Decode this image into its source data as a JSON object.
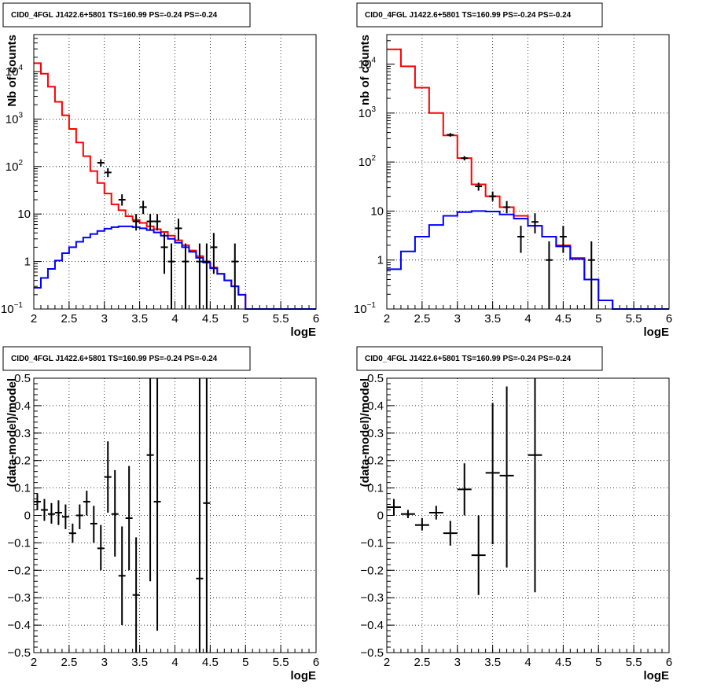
{
  "chart_data": [
    {
      "type": "histogram",
      "title": "CID0_4FGL J1422.6+5801 TS=160.99 PS=-0.24 PS=-0.24",
      "xlabel": "logE",
      "ylabel": "Nb of counts",
      "xlim": [
        2,
        6
      ],
      "ylim": [
        0.1,
        60000
      ],
      "yscale": "log",
      "grid": true,
      "x_ticks": [
        "2",
        "2.5",
        "3",
        "3.5",
        "4",
        "4.5",
        "5",
        "5.5",
        "6"
      ],
      "y_ticks": [
        {
          "v": 0.1,
          "m": "10",
          "e": "−1"
        },
        {
          "v": 1,
          "m": "1",
          "e": ""
        },
        {
          "v": 10,
          "m": "10",
          "e": ""
        },
        {
          "v": 100,
          "m": "10",
          "e": "2"
        },
        {
          "v": 1000,
          "m": "10",
          "e": "3"
        },
        {
          "v": 10000,
          "m": "10",
          "e": "4"
        }
      ],
      "bin_edges": [
        2.0,
        2.1,
        2.2,
        2.3,
        2.4,
        2.5,
        2.6,
        2.7,
        2.8,
        2.9,
        3.0,
        3.1,
        3.2,
        3.3,
        3.4,
        3.5,
        3.6,
        3.7,
        3.8,
        3.9,
        4.0,
        4.1,
        4.2,
        4.3,
        4.4,
        4.5,
        4.6,
        4.7,
        4.8,
        4.9,
        5.0,
        5.1,
        5.2,
        5.3,
        5.4,
        5.5,
        5.6,
        5.7,
        5.8,
        5.9,
        6.0
      ],
      "series": [
        {
          "name": "total model",
          "color": "#ff0000",
          "values": [
            15000,
            9000,
            4800,
            2300,
            1200,
            620,
            320,
            165,
            80,
            45,
            27,
            16,
            12,
            9,
            7.5,
            6.5,
            5.5,
            4.8,
            4.2,
            3.5,
            2.8,
            2.2,
            1.7,
            1.3,
            1.0,
            0.75,
            0.55,
            0.4,
            0.3,
            0.2,
            0.1,
            0.1,
            0.1,
            0.1,
            0.1,
            0.1,
            0.1,
            0.1,
            0.1,
            0.1
          ]
        },
        {
          "name": "source",
          "color": "#0000ff",
          "values": [
            0.28,
            0.45,
            0.7,
            1.05,
            1.5,
            2.0,
            2.6,
            3.2,
            3.8,
            4.4,
            4.9,
            5.3,
            5.5,
            5.5,
            5.3,
            5.0,
            4.6,
            4.1,
            3.5,
            3.0,
            2.5,
            2.0,
            1.6,
            1.2,
            0.95,
            0.72,
            0.55,
            0.4,
            0.3,
            0.2,
            0.1,
            0.1,
            0.1,
            0.1,
            0.1,
            0.1,
            0.1,
            0.1,
            0.1,
            0.1
          ]
        }
      ],
      "points": [
        {
          "x": 2.95,
          "y": 120,
          "ylo": 100,
          "yhi": 142
        },
        {
          "x": 3.05,
          "y": 75,
          "ylo": 60,
          "yhi": 92
        },
        {
          "x": 3.25,
          "y": 20,
          "ylo": 15,
          "yhi": 26
        },
        {
          "x": 3.45,
          "y": 7,
          "ylo": 4.5,
          "yhi": 10
        },
        {
          "x": 3.55,
          "y": 14,
          "ylo": 10,
          "yhi": 19
        },
        {
          "x": 3.65,
          "y": 7,
          "ylo": 4.5,
          "yhi": 10
        },
        {
          "x": 3.75,
          "y": 7,
          "ylo": 4.5,
          "yhi": 10
        },
        {
          "x": 3.85,
          "y": 2,
          "ylo": 0.55,
          "yhi": 4
        },
        {
          "x": 3.95,
          "y": 1,
          "ylo": 0.1,
          "yhi": 2.4
        },
        {
          "x": 4.05,
          "y": 5,
          "ylo": 2.8,
          "yhi": 8
        },
        {
          "x": 4.15,
          "y": 1,
          "ylo": 0.1,
          "yhi": 2.4
        },
        {
          "x": 4.35,
          "y": 1,
          "ylo": 0.1,
          "yhi": 2.4
        },
        {
          "x": 4.45,
          "y": 1,
          "ylo": 0.1,
          "yhi": 2.4
        },
        {
          "x": 4.55,
          "y": 2,
          "ylo": 0.55,
          "yhi": 4
        },
        {
          "x": 4.85,
          "y": 1,
          "ylo": 0.1,
          "yhi": 2.4
        }
      ]
    },
    {
      "type": "histogram",
      "title": "CID0_4FGL J1422.6+5801 TS=160.99 PS=-0.24 PS=-0.24",
      "xlabel": "logE",
      "ylabel": "nb of counts",
      "xlim": [
        2,
        6
      ],
      "ylim": [
        0.1,
        40000
      ],
      "yscale": "log",
      "grid": true,
      "x_ticks": [
        "2",
        "2.5",
        "3",
        "3.5",
        "4",
        "4.5",
        "5",
        "5.5",
        "6"
      ],
      "y_ticks": [
        {
          "v": 0.1,
          "m": "10",
          "e": "−1"
        },
        {
          "v": 1,
          "m": "1",
          "e": ""
        },
        {
          "v": 10,
          "m": "10",
          "e": ""
        },
        {
          "v": 100,
          "m": "10",
          "e": "2"
        },
        {
          "v": 1000,
          "m": "10",
          "e": "3"
        },
        {
          "v": 10000,
          "m": "10",
          "e": "4"
        }
      ],
      "bin_edges": [
        2.0,
        2.2,
        2.4,
        2.6,
        2.8,
        3.0,
        3.2,
        3.4,
        3.6,
        3.8,
        4.0,
        4.2,
        4.4,
        4.6,
        4.8,
        5.0,
        5.2,
        5.4,
        5.6,
        5.8,
        6.0
      ],
      "series": [
        {
          "name": "total model",
          "color": "#ff0000",
          "values": [
            20000,
            9000,
            3300,
            1000,
            350,
            120,
            35,
            20,
            12,
            8,
            5,
            3,
            2,
            1.1,
            0.4,
            0.15,
            0.1,
            0.1,
            0.1,
            0.1
          ]
        },
        {
          "name": "source",
          "color": "#0000ff",
          "values": [
            0.65,
            1.5,
            3,
            5.2,
            8,
            9.5,
            10,
            9.8,
            8.5,
            7,
            5,
            3,
            1.9,
            1.05,
            0.4,
            0.15,
            0.1,
            0.1,
            0.1,
            0.1
          ]
        }
      ],
      "points": [
        {
          "x": 2.9,
          "y": 360,
          "ylo": 330,
          "yhi": 390
        },
        {
          "x": 3.1,
          "y": 120,
          "ylo": 108,
          "yhi": 132
        },
        {
          "x": 3.3,
          "y": 32,
          "ylo": 26,
          "yhi": 38
        },
        {
          "x": 3.5,
          "y": 20,
          "ylo": 16,
          "yhi": 25
        },
        {
          "x": 3.7,
          "y": 12,
          "ylo": 9,
          "yhi": 16
        },
        {
          "x": 3.9,
          "y": 3,
          "ylo": 1.4,
          "yhi": 5
        },
        {
          "x": 4.1,
          "y": 6,
          "ylo": 3.5,
          "yhi": 9
        },
        {
          "x": 4.3,
          "y": 1,
          "ylo": 0.1,
          "yhi": 2.4
        },
        {
          "x": 4.5,
          "y": 3,
          "ylo": 1.4,
          "yhi": 5
        },
        {
          "x": 4.9,
          "y": 1,
          "ylo": 0.1,
          "yhi": 2.4
        }
      ]
    },
    {
      "type": "scatter",
      "title": "CID0_4FGL J1422.6+5801 TS=160.99 PS=-0.24 PS=-0.24",
      "xlabel": "logE",
      "ylabel": "(data-model)/model",
      "xlim": [
        2,
        6
      ],
      "ylim": [
        -0.5,
        0.5
      ],
      "yscale": "linear",
      "grid": true,
      "x_ticks": [
        "2",
        "2.5",
        "3",
        "3.5",
        "4",
        "4.5",
        "5",
        "5.5",
        "6"
      ],
      "y_ticks": [
        {
          "v": -0.5,
          "m": "−0.5",
          "e": ""
        },
        {
          "v": -0.4,
          "m": "−0.4",
          "e": ""
        },
        {
          "v": -0.3,
          "m": "−0.3",
          "e": ""
        },
        {
          "v": -0.2,
          "m": "−0.2",
          "e": ""
        },
        {
          "v": -0.1,
          "m": "−0.1",
          "e": ""
        },
        {
          "v": 0,
          "m": "0",
          "e": ""
        },
        {
          "v": 0.1,
          "m": "0.1",
          "e": ""
        },
        {
          "v": 0.2,
          "m": "0.2",
          "e": ""
        },
        {
          "v": 0.3,
          "m": "0.3",
          "e": ""
        },
        {
          "v": 0.4,
          "m": "0.4",
          "e": ""
        },
        {
          "v": 0.5,
          "m": "0.5",
          "e": ""
        }
      ],
      "points": [
        {
          "x": 2.05,
          "y": 0.05,
          "ylo": 0.02,
          "yhi": 0.08,
          "xerr": 0.05
        },
        {
          "x": 2.15,
          "y": 0.02,
          "ylo": -0.02,
          "yhi": 0.06,
          "xerr": 0.05
        },
        {
          "x": 2.25,
          "y": 0.005,
          "ylo": -0.03,
          "yhi": 0.045,
          "xerr": 0.05
        },
        {
          "x": 2.35,
          "y": 0.01,
          "ylo": -0.035,
          "yhi": 0.055,
          "xerr": 0.05
        },
        {
          "x": 2.45,
          "y": -0.005,
          "ylo": -0.05,
          "yhi": 0.04,
          "xerr": 0.05
        },
        {
          "x": 2.55,
          "y": -0.065,
          "ylo": -0.1,
          "yhi": -0.03,
          "xerr": 0.05
        },
        {
          "x": 2.65,
          "y": 0.0,
          "ylo": -0.05,
          "yhi": 0.04,
          "xerr": 0.05
        },
        {
          "x": 2.75,
          "y": 0.05,
          "ylo": 0.0,
          "yhi": 0.09,
          "xerr": 0.05
        },
        {
          "x": 2.85,
          "y": -0.03,
          "ylo": -0.1,
          "yhi": 0.035,
          "xerr": 0.05
        },
        {
          "x": 2.95,
          "y": -0.12,
          "ylo": -0.2,
          "yhi": -0.035,
          "xerr": 0.05
        },
        {
          "x": 3.05,
          "y": 0.14,
          "ylo": 0.01,
          "yhi": 0.27,
          "xerr": 0.05
        },
        {
          "x": 3.15,
          "y": 0.005,
          "ylo": -0.15,
          "yhi": 0.165,
          "xerr": 0.05
        },
        {
          "x": 3.25,
          "y": -0.22,
          "ylo": -0.4,
          "yhi": -0.04,
          "xerr": 0.05
        },
        {
          "x": 3.35,
          "y": -0.01,
          "ylo": -0.2,
          "yhi": 0.18,
          "xerr": 0.05
        },
        {
          "x": 3.45,
          "y": -0.29,
          "ylo": -0.5,
          "yhi": -0.08,
          "xerr": 0.05
        },
        {
          "x": 3.65,
          "y": 0.22,
          "ylo": -0.24,
          "yhi": 0.5,
          "xerr": 0.05
        },
        {
          "x": 3.75,
          "y": 0.05,
          "ylo": -0.42,
          "yhi": 0.5,
          "xerr": 0.05
        },
        {
          "x": 4.35,
          "y": -0.23,
          "ylo": -0.5,
          "yhi": 0.5,
          "xerr": 0.05
        },
        {
          "x": 4.45,
          "y": 0.045,
          "ylo": -0.5,
          "yhi": 0.5,
          "xerr": 0.05
        }
      ]
    },
    {
      "type": "scatter",
      "title": "CID0_4FGL J1422.6+5801 TS=160.99 PS=-0.24 PS=-0.24",
      "xlabel": "logE",
      "ylabel": "(data-model)/model",
      "xlim": [
        2,
        6
      ],
      "ylim": [
        -0.5,
        0.5
      ],
      "yscale": "linear",
      "grid": true,
      "x_ticks": [
        "2",
        "2.5",
        "3",
        "3.5",
        "4",
        "4.5",
        "5",
        "5.5",
        "6"
      ],
      "y_ticks": [
        {
          "v": -0.5,
          "m": "−0.5",
          "e": ""
        },
        {
          "v": -0.4,
          "m": "−0.4",
          "e": ""
        },
        {
          "v": -0.3,
          "m": "−0.3",
          "e": ""
        },
        {
          "v": -0.2,
          "m": "−0.2",
          "e": ""
        },
        {
          "v": -0.1,
          "m": "−0.1",
          "e": ""
        },
        {
          "v": 0,
          "m": "0",
          "e": ""
        },
        {
          "v": 0.1,
          "m": "0.1",
          "e": ""
        },
        {
          "v": 0.2,
          "m": "0.2",
          "e": ""
        },
        {
          "v": 0.3,
          "m": "0.3",
          "e": ""
        },
        {
          "v": 0.4,
          "m": "0.4",
          "e": ""
        },
        {
          "v": 0.5,
          "m": "0.5",
          "e": ""
        }
      ],
      "points": [
        {
          "x": 2.1,
          "y": 0.03,
          "ylo": 0.0,
          "yhi": 0.06,
          "xerr": 0.1
        },
        {
          "x": 2.3,
          "y": 0.005,
          "ylo": -0.01,
          "yhi": 0.02,
          "xerr": 0.1
        },
        {
          "x": 2.5,
          "y": -0.035,
          "ylo": -0.055,
          "yhi": -0.01,
          "xerr": 0.1
        },
        {
          "x": 2.7,
          "y": 0.01,
          "ylo": -0.015,
          "yhi": 0.035,
          "xerr": 0.1
        },
        {
          "x": 2.9,
          "y": -0.065,
          "ylo": -0.11,
          "yhi": -0.02,
          "xerr": 0.1
        },
        {
          "x": 3.1,
          "y": 0.095,
          "ylo": 0.0,
          "yhi": 0.19,
          "xerr": 0.1
        },
        {
          "x": 3.3,
          "y": -0.145,
          "ylo": -0.29,
          "yhi": 0.0,
          "xerr": 0.1
        },
        {
          "x": 3.5,
          "y": 0.155,
          "ylo": -0.105,
          "yhi": 0.41,
          "xerr": 0.1
        },
        {
          "x": 3.7,
          "y": 0.145,
          "ylo": -0.19,
          "yhi": 0.47,
          "xerr": 0.1
        },
        {
          "x": 4.1,
          "y": 0.22,
          "ylo": -0.28,
          "yhi": 0.5,
          "xerr": 0.1
        }
      ]
    }
  ]
}
